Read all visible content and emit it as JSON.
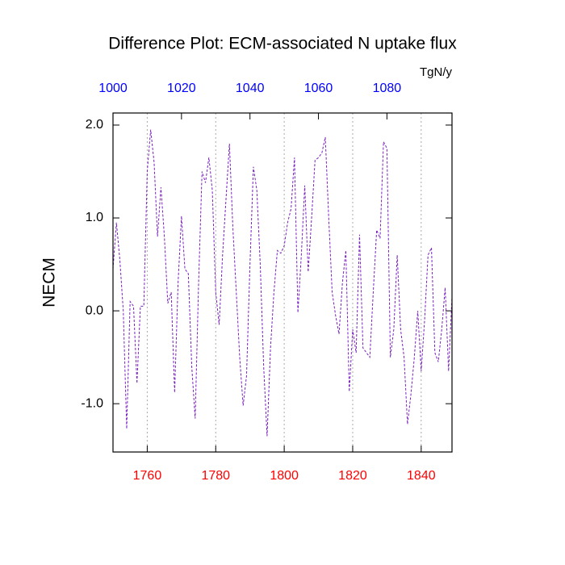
{
  "chart_data": {
    "type": "line",
    "title": "Difference Plot: ECM-associated N uptake flux",
    "units": "TgN/y",
    "ylabel": "NECM",
    "x": [
      1750,
      1751,
      1752,
      1753,
      1754,
      1755,
      1756,
      1757,
      1758,
      1759,
      1760,
      1761,
      1762,
      1763,
      1764,
      1765,
      1766,
      1767,
      1768,
      1769,
      1770,
      1771,
      1772,
      1773,
      1774,
      1775,
      1776,
      1777,
      1778,
      1779,
      1780,
      1781,
      1782,
      1783,
      1784,
      1785,
      1786,
      1787,
      1788,
      1789,
      1790,
      1791,
      1792,
      1793,
      1794,
      1795,
      1796,
      1797,
      1798,
      1799,
      1800,
      1801,
      1802,
      1803,
      1804,
      1805,
      1806,
      1807,
      1808,
      1809,
      1810,
      1811,
      1812,
      1813,
      1814,
      1815,
      1816,
      1817,
      1818,
      1819,
      1820,
      1821,
      1822,
      1823,
      1824,
      1825,
      1826,
      1827,
      1828,
      1829,
      1830,
      1831,
      1832,
      1833,
      1834,
      1835,
      1836,
      1837,
      1838,
      1839,
      1840,
      1841,
      1842,
      1843,
      1844,
      1845,
      1846,
      1847,
      1848,
      1849
    ],
    "series": [
      {
        "color": "#7a1fc0",
        "values": [
          0.45,
          0.95,
          0.55,
          0.0,
          -1.27,
          0.1,
          0.05,
          -0.78,
          0.05,
          0.05,
          1.5,
          1.95,
          1.6,
          0.8,
          1.33,
          0.8,
          0.08,
          0.2,
          -0.88,
          0.3,
          1.02,
          0.45,
          0.4,
          -0.6,
          -1.16,
          0.3,
          1.5,
          1.38,
          1.65,
          1.3,
          0.2,
          -0.15,
          0.6,
          1.2,
          1.8,
          0.9,
          0.2,
          -0.5,
          -1.02,
          -0.7,
          0.5,
          1.55,
          1.3,
          0.5,
          -0.6,
          -1.35,
          -0.4,
          0.2,
          0.65,
          0.62,
          0.7,
          0.95,
          1.1,
          1.65,
          -0.02,
          0.6,
          1.35,
          0.42,
          1.0,
          1.62,
          1.65,
          1.7,
          1.87,
          1.0,
          0.2,
          -0.05,
          -0.25,
          0.3,
          0.65,
          -0.87,
          -0.2,
          -0.45,
          0.82,
          -0.4,
          -0.45,
          -0.5,
          0.2,
          0.87,
          0.78,
          1.82,
          1.75,
          -0.5,
          -0.2,
          0.6,
          -0.2,
          -0.5,
          -1.22,
          -0.9,
          -0.5,
          0.0,
          -0.65,
          -0.1,
          0.6,
          0.68,
          -0.45,
          -0.55,
          -0.2,
          0.25,
          -0.65,
          0.15
        ]
      }
    ],
    "xlim": [
      1750,
      1849
    ],
    "xticks": [
      1760,
      1780,
      1800,
      1820,
      1840
    ],
    "xtick_color": "#ff0000",
    "x2lim": [
      1000,
      1099
    ],
    "x2ticks": [
      1000,
      1020,
      1040,
      1060,
      1080
    ],
    "x2tick_color": "#0000ff",
    "ylim": [
      -1.52,
      2.13
    ],
    "yticks": [
      {
        "value": -1,
        "label": "-1.0"
      },
      {
        "value": 0,
        "label": "0.0"
      },
      {
        "value": 1,
        "label": "1.0"
      },
      {
        "value": 2,
        "label": "2.0"
      }
    ],
    "grid": true
  }
}
